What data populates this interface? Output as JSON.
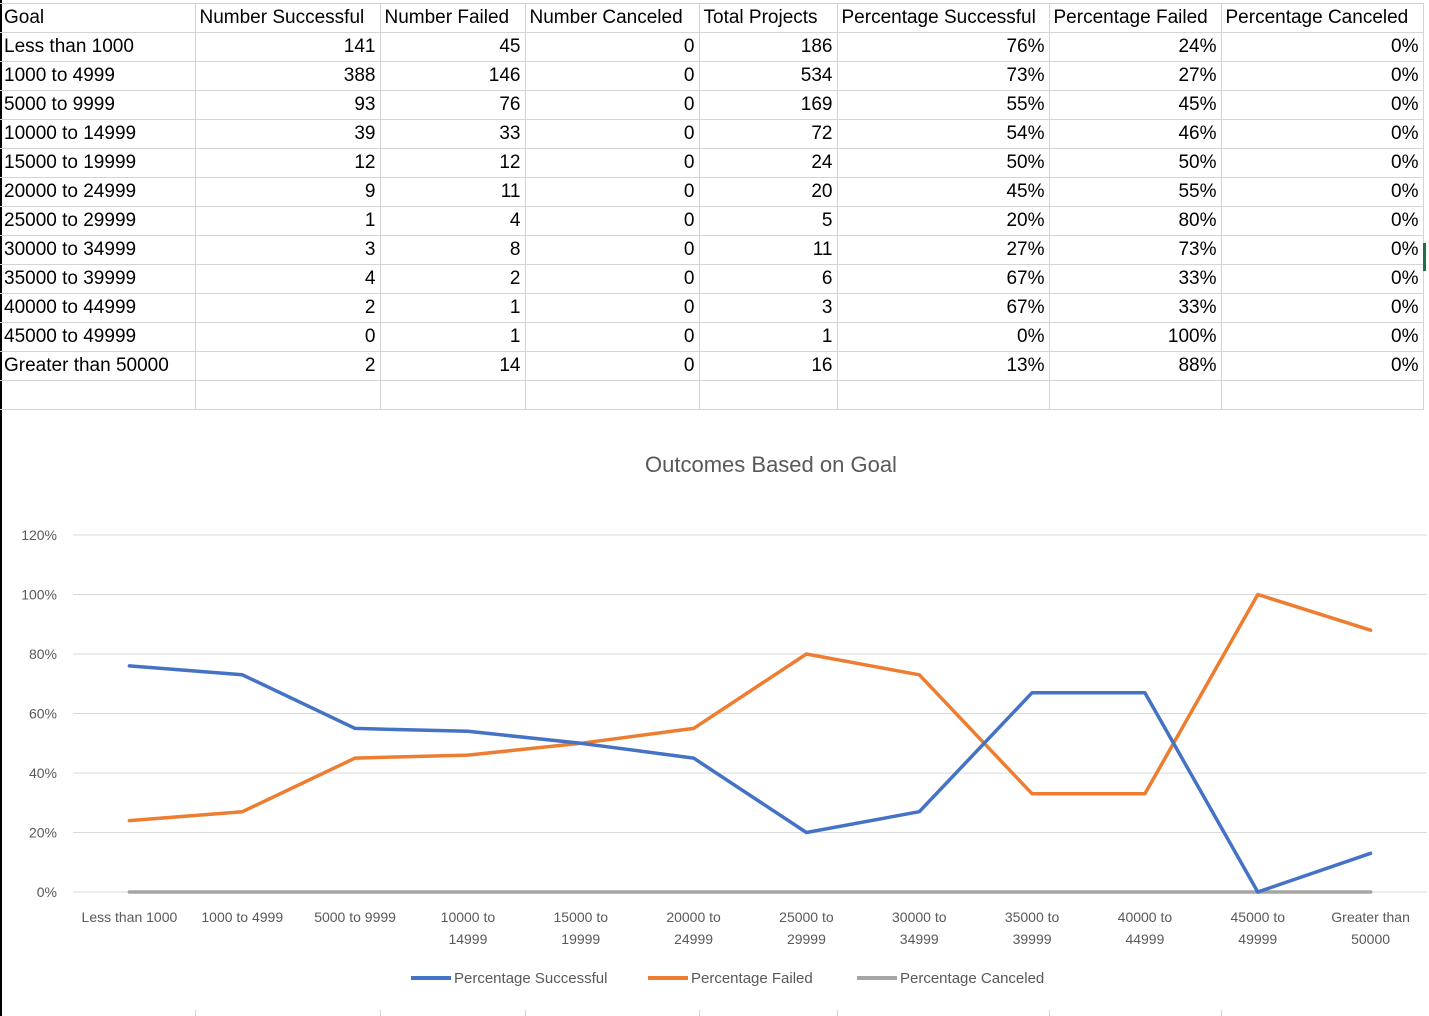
{
  "table": {
    "headers": [
      "Goal",
      "Number Successful",
      "Number Failed",
      "Number Canceled",
      "Total Projects",
      "Percentage Successful",
      "Percentage Failed",
      "Percentage Canceled"
    ],
    "rows": [
      [
        "Less than 1000",
        "141",
        "45",
        "0",
        "186",
        "76%",
        "24%",
        "0%"
      ],
      [
        "1000 to 4999",
        "388",
        "146",
        "0",
        "534",
        "73%",
        "27%",
        "0%"
      ],
      [
        "5000 to 9999",
        "93",
        "76",
        "0",
        "169",
        "55%",
        "45%",
        "0%"
      ],
      [
        "10000 to 14999",
        "39",
        "33",
        "0",
        "72",
        "54%",
        "46%",
        "0%"
      ],
      [
        "15000 to 19999",
        "12",
        "12",
        "0",
        "24",
        "50%",
        "50%",
        "0%"
      ],
      [
        "20000 to 24999",
        "9",
        "11",
        "0",
        "20",
        "45%",
        "55%",
        "0%"
      ],
      [
        "25000 to 29999",
        "1",
        "4",
        "0",
        "5",
        "20%",
        "80%",
        "0%"
      ],
      [
        "30000 to 34999",
        "3",
        "8",
        "0",
        "11",
        "27%",
        "73%",
        "0%"
      ],
      [
        "35000 to 39999",
        "4",
        "2",
        "0",
        "6",
        "67%",
        "33%",
        "0%"
      ],
      [
        "40000 to 44999",
        "2",
        "1",
        "0",
        "3",
        "67%",
        "33%",
        "0%"
      ],
      [
        "45000 to 49999",
        "0",
        "1",
        "0",
        "1",
        "0%",
        "100%",
        "0%"
      ],
      [
        "Greater than 50000",
        "2",
        "14",
        "0",
        "16",
        "13%",
        "88%",
        "0%"
      ]
    ]
  },
  "chart_data": {
    "type": "line",
    "title": "Outcomes Based on Goal",
    "categories": [
      [
        "Less than 1000"
      ],
      [
        "1000 to 4999"
      ],
      [
        "5000 to 9999"
      ],
      [
        "10000 to",
        "14999"
      ],
      [
        "15000 to",
        "19999"
      ],
      [
        "20000 to",
        "24999"
      ],
      [
        "25000 to",
        "29999"
      ],
      [
        "30000 to",
        "34999"
      ],
      [
        "35000 to",
        "39999"
      ],
      [
        "40000 to",
        "44999"
      ],
      [
        "45000 to",
        "49999"
      ],
      [
        "Greater than",
        "50000"
      ]
    ],
    "y_ticks": [
      "0%",
      "20%",
      "40%",
      "60%",
      "80%",
      "100%",
      "120%"
    ],
    "ylim": [
      0,
      1.2
    ],
    "grid": true,
    "legend": "bottom",
    "series": [
      {
        "name": "Percentage Successful",
        "color": "#4472c4",
        "values": [
          0.76,
          0.73,
          0.55,
          0.54,
          0.5,
          0.45,
          0.2,
          0.27,
          0.67,
          0.67,
          0.0,
          0.13
        ]
      },
      {
        "name": "Percentage Failed",
        "color": "#ed7d31",
        "values": [
          0.24,
          0.27,
          0.45,
          0.46,
          0.5,
          0.55,
          0.8,
          0.73,
          0.33,
          0.33,
          1.0,
          0.88
        ]
      },
      {
        "name": "Percentage Canceled",
        "color": "#a5a5a5",
        "values": [
          0,
          0,
          0,
          0,
          0,
          0,
          0,
          0,
          0,
          0,
          0,
          0
        ]
      }
    ]
  }
}
